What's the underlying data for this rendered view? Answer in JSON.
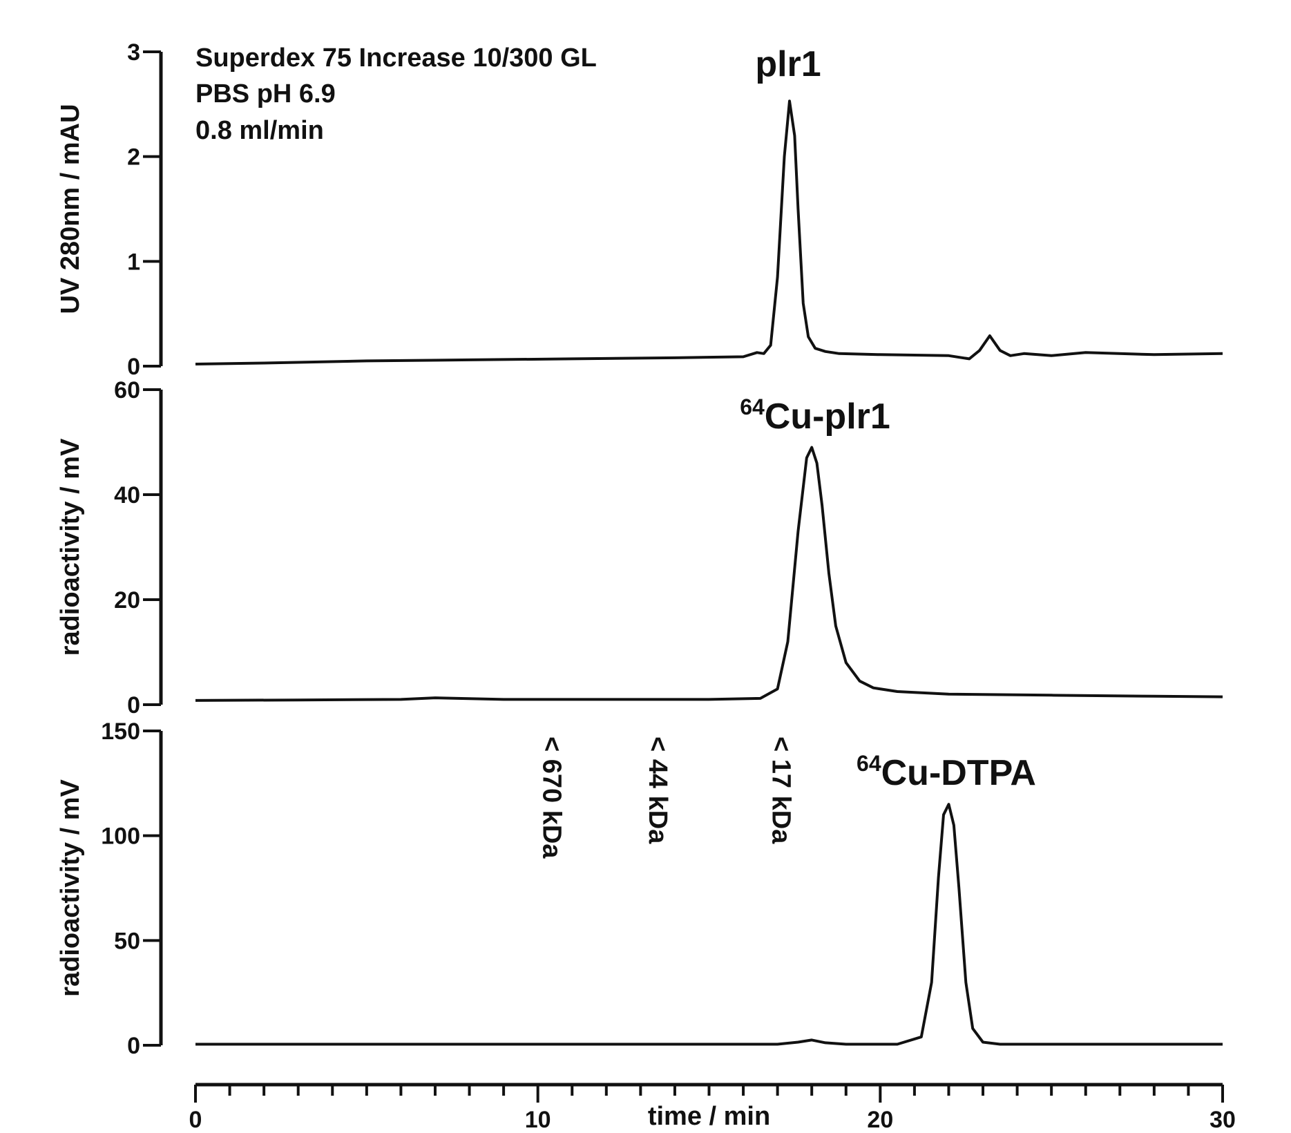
{
  "annotations": {
    "column": "Superdex 75 Increase 10/300 GL",
    "buffer": "PBS pH 6.9",
    "flow": "0.8 ml/min"
  },
  "chart_data": [
    {
      "type": "line",
      "panel": "top",
      "ylabel": "UV 280nm / mAU",
      "ylim": [
        0,
        3
      ],
      "yticks": [
        "0",
        "1",
        "2",
        "3"
      ],
      "xlim": [
        0,
        30
      ],
      "peak_label": "plr1",
      "series": [
        {
          "x": [
            0,
            2,
            5,
            8,
            11,
            14,
            16,
            16.4,
            16.6,
            16.8,
            17.0,
            17.2,
            17.35,
            17.5,
            17.6,
            17.75,
            17.9,
            18.1,
            18.4,
            18.8,
            20,
            22,
            22.6,
            22.9,
            23.2,
            23.5,
            23.8,
            24.2,
            25,
            26,
            28,
            30
          ],
          "values": [
            0.02,
            0.03,
            0.05,
            0.06,
            0.07,
            0.08,
            0.09,
            0.13,
            0.12,
            0.2,
            0.85,
            2.0,
            2.53,
            2.2,
            1.5,
            0.6,
            0.28,
            0.17,
            0.14,
            0.12,
            0.11,
            0.1,
            0.07,
            0.15,
            0.29,
            0.15,
            0.1,
            0.12,
            0.1,
            0.13,
            0.11,
            0.12
          ]
        }
      ]
    },
    {
      "type": "line",
      "panel": "middle",
      "ylabel": "radioactivity / mV",
      "ylim": [
        0,
        60
      ],
      "yticks": [
        "0",
        "20",
        "40",
        "60"
      ],
      "xlim": [
        0,
        30
      ],
      "peak_label_sup": "64",
      "peak_label": "Cu-plr1",
      "series": [
        {
          "x": [
            0,
            3,
            6,
            7,
            9,
            12,
            15,
            16.5,
            17.0,
            17.3,
            17.6,
            17.85,
            18.0,
            18.15,
            18.3,
            18.5,
            18.7,
            19.0,
            19.4,
            19.8,
            20.5,
            22,
            25,
            28,
            30
          ],
          "values": [
            0.8,
            0.9,
            1.0,
            1.3,
            1.0,
            1.0,
            1.0,
            1.2,
            3.0,
            12,
            33,
            47,
            49,
            46,
            38,
            25,
            15,
            8.0,
            4.5,
            3.2,
            2.5,
            2.0,
            1.8,
            1.6,
            1.5
          ]
        }
      ]
    },
    {
      "type": "line",
      "panel": "bottom",
      "ylabel": "radioactivity / mV",
      "ylim": [
        0,
        150
      ],
      "yticks": [
        "0",
        "50",
        "100",
        "150"
      ],
      "xlim": [
        0,
        30
      ],
      "xticks": [
        "0",
        "10",
        "20",
        "30"
      ],
      "xlabel": "time / min",
      "peak_label_sup": "64",
      "peak_label": "Cu-DTPA",
      "markers": [
        {
          "x": 10.4,
          "label": "< 670 kDa"
        },
        {
          "x": 13.5,
          "label": "< 44 kDa"
        },
        {
          "x": 17.1,
          "label": "< 17 kDa"
        }
      ],
      "series": [
        {
          "x": [
            0,
            5,
            10,
            15,
            17,
            17.6,
            18.0,
            18.4,
            19,
            20.5,
            21.2,
            21.5,
            21.7,
            21.85,
            22.0,
            22.15,
            22.3,
            22.5,
            22.7,
            23.0,
            23.5,
            25,
            30
          ],
          "values": [
            0.5,
            0.5,
            0.5,
            0.5,
            0.5,
            1.5,
            2.5,
            1.2,
            0.5,
            0.5,
            4.0,
            30,
            80,
            110,
            115,
            105,
            75,
            30,
            8.0,
            1.5,
            0.5,
            0.5,
            0.5
          ]
        }
      ]
    }
  ]
}
